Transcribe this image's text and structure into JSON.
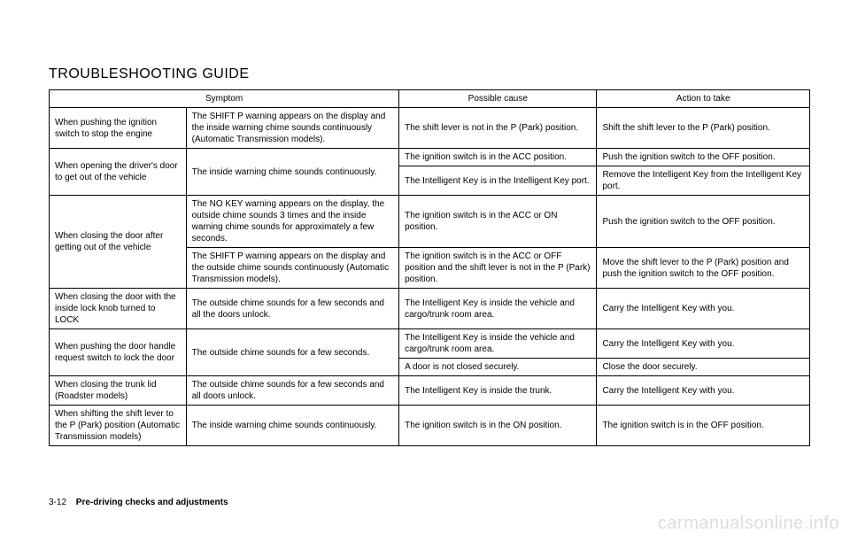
{
  "title": "TROUBLESHOOTING GUIDE",
  "headers": {
    "symptom": "Symptom",
    "cause": "Possible cause",
    "action": "Action to take"
  },
  "rows": {
    "r1": {
      "symptom1": "When pushing the ignition switch to stop the engine",
      "symptom2": "The SHIFT P warning appears on the display and the inside warning chime sounds continuously (Automatic Transmission models).",
      "cause": "The shift lever is not in the P (Park) position.",
      "action": "Shift the shift lever to the P (Park) position."
    },
    "r2": {
      "symptom1": "When opening the driver's door to get out of the vehicle",
      "symptom2": "The inside warning chime sounds continuously.",
      "cause_a": "The ignition switch is in the ACC position.",
      "action_a": "Push the ignition switch to the OFF position.",
      "cause_b": "The Intelligent Key is in the Intelligent Key port.",
      "action_b": "Remove the Intelligent Key from the Intelligent Key port."
    },
    "r3": {
      "symptom1": "When closing the door after getting out of the vehicle",
      "symptom2_a": "The NO KEY warning appears on the display, the outside chime sounds 3 times and the inside warning chime sounds for approximately a few seconds.",
      "cause_a": "The ignition switch is in the ACC or ON position.",
      "action_a": "Push the ignition switch to the OFF position.",
      "symptom2_b": "The SHIFT P warning appears on the display and the outside chime sounds continuously (Automatic Transmission models).",
      "cause_b": "The ignition switch is in the ACC or OFF position and the shift lever is not in the P (Park) position.",
      "action_b": "Move the shift lever to the P (Park) position and push the ignition switch to the OFF position."
    },
    "r4": {
      "symptom1": "When closing the door with the inside lock knob turned to LOCK",
      "symptom2": "The outside chime sounds for a few seconds and all the doors unlock.",
      "cause": "The Intelligent Key is inside the vehicle and cargo/trunk room area.",
      "action": "Carry the Intelligent Key with you."
    },
    "r5": {
      "symptom1": "When pushing the door handle request switch to lock the door",
      "symptom2": "The outside chime sounds for a few seconds.",
      "cause_a": "The Intelligent Key is inside the vehicle and cargo/trunk room area.",
      "action_a": "Carry the Intelligent Key with you.",
      "cause_b": "A door is not closed securely.",
      "action_b": "Close the door securely."
    },
    "r6": {
      "symptom1": "When closing the trunk lid (Roadster models)",
      "symptom2": "The outside chime sounds for a few seconds and all doors unlock.",
      "cause": "The Intelligent Key is inside the trunk.",
      "action": "Carry the Intelligent Key with you."
    },
    "r7": {
      "symptom1": "When shifting the shift lever to the P (Park) position (Automatic Transmission models)",
      "symptom2": "The inside warning chime sounds continuously.",
      "cause": "The ignition switch is in the ON position.",
      "action": "The ignition switch is in the OFF position."
    }
  },
  "footer": {
    "page": "3-12",
    "section": "Pre-driving checks and adjustments"
  },
  "watermark": "carmanualsonline.info"
}
